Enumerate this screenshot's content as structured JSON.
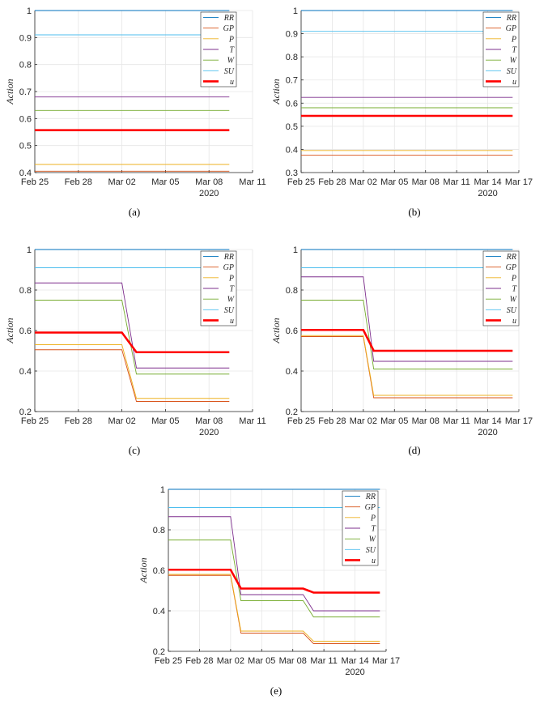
{
  "figure": {
    "legend_entries": [
      "RR",
      "GP",
      "P",
      "T",
      "W",
      "SU",
      "u"
    ],
    "colors": {
      "RR": "#0072BD",
      "GP": "#D95319",
      "P": "#EDB120",
      "T": "#7E2F8E",
      "W": "#77AC30",
      "SU": "#4DBEEE",
      "u": "#FF0000"
    }
  },
  "chart_data": [
    {
      "panel": "(a)",
      "type": "line",
      "xlabel": "",
      "ylabel": "Action",
      "ylim": [
        0.4,
        1
      ],
      "yticks": [
        "0.4",
        "0.5",
        "0.6",
        "0.7",
        "0.8",
        "0.9",
        "1"
      ],
      "xlim_days": [
        0,
        15
      ],
      "xticks": [
        {
          "day": 0,
          "label": "Feb 25"
        },
        {
          "day": 3,
          "label": "Feb 28"
        },
        {
          "day": 6,
          "label": "Mar 02"
        },
        {
          "day": 9,
          "label": "Mar 05"
        },
        {
          "day": 12,
          "label": "Mar 08"
        },
        {
          "day": 15,
          "label": "Mar 11"
        }
      ],
      "year_label": "2020",
      "legend": "top-right",
      "grid": true,
      "series": [
        {
          "name": "RR",
          "points": [
            [
              0,
              1.0
            ],
            [
              13.4,
              1.0
            ]
          ]
        },
        {
          "name": "GP",
          "points": [
            [
              0,
              0.405
            ],
            [
              13.4,
              0.405
            ]
          ]
        },
        {
          "name": "P",
          "points": [
            [
              0,
              0.43
            ],
            [
              13.4,
              0.43
            ]
          ]
        },
        {
          "name": "T",
          "points": [
            [
              0,
              0.68
            ],
            [
              13.4,
              0.68
            ]
          ]
        },
        {
          "name": "W",
          "points": [
            [
              0,
              0.63
            ],
            [
              13.4,
              0.63
            ]
          ]
        },
        {
          "name": "SU",
          "points": [
            [
              0,
              0.91
            ],
            [
              13.4,
              0.91
            ]
          ]
        },
        {
          "name": "u",
          "points": [
            [
              0,
              0.557
            ],
            [
              13.4,
              0.557
            ]
          ]
        }
      ]
    },
    {
      "panel": "(b)",
      "type": "line",
      "xlabel": "",
      "ylabel": "Action",
      "ylim": [
        0.3,
        1
      ],
      "yticks": [
        "0.3",
        "0.4",
        "0.5",
        "0.6",
        "0.7",
        "0.8",
        "0.9",
        "1"
      ],
      "xlim_days": [
        0,
        21
      ],
      "xticks": [
        {
          "day": 0,
          "label": "Feb 25"
        },
        {
          "day": 3,
          "label": "Feb 28"
        },
        {
          "day": 6,
          "label": "Mar 02"
        },
        {
          "day": 9,
          "label": "Mar 05"
        },
        {
          "day": 12,
          "label": "Mar 08"
        },
        {
          "day": 15,
          "label": "Mar 11"
        },
        {
          "day": 18,
          "label": "Mar 14"
        },
        {
          "day": 21,
          "label": "Mar 17"
        }
      ],
      "year_label": "2020",
      "legend": "top-right",
      "grid": true,
      "series": [
        {
          "name": "RR",
          "points": [
            [
              0,
              1.0
            ],
            [
              20.4,
              1.0
            ]
          ]
        },
        {
          "name": "GP",
          "points": [
            [
              0,
              0.375
            ],
            [
              20.4,
              0.375
            ]
          ]
        },
        {
          "name": "P",
          "points": [
            [
              0,
              0.395
            ],
            [
              20.4,
              0.395
            ]
          ]
        },
        {
          "name": "T",
          "points": [
            [
              0,
              0.625
            ],
            [
              20.4,
              0.625
            ]
          ]
        },
        {
          "name": "W",
          "points": [
            [
              0,
              0.58
            ],
            [
              20.4,
              0.58
            ]
          ]
        },
        {
          "name": "SU",
          "points": [
            [
              0,
              0.91
            ],
            [
              20.4,
              0.91
            ]
          ]
        },
        {
          "name": "u",
          "points": [
            [
              0,
              0.545
            ],
            [
              20.4,
              0.545
            ]
          ]
        }
      ]
    },
    {
      "panel": "(c)",
      "type": "line",
      "xlabel": "",
      "ylabel": "Action",
      "ylim": [
        0.2,
        1
      ],
      "yticks": [
        "0.2",
        "0.4",
        "0.6",
        "0.8",
        "1"
      ],
      "xlim_days": [
        0,
        15
      ],
      "xticks": [
        {
          "day": 0,
          "label": "Feb 25"
        },
        {
          "day": 3,
          "label": "Feb 28"
        },
        {
          "day": 6,
          "label": "Mar 02"
        },
        {
          "day": 9,
          "label": "Mar 05"
        },
        {
          "day": 12,
          "label": "Mar 08"
        },
        {
          "day": 15,
          "label": "Mar 11"
        }
      ],
      "year_label": "2020",
      "legend": "top-right",
      "grid": true,
      "series": [
        {
          "name": "RR",
          "points": [
            [
              0,
              1.0
            ],
            [
              13.4,
              1.0
            ]
          ]
        },
        {
          "name": "GP",
          "points": [
            [
              0,
              0.505
            ],
            [
              6,
              0.505
            ],
            [
              7,
              0.25
            ],
            [
              13.4,
              0.25
            ]
          ]
        },
        {
          "name": "P",
          "points": [
            [
              0,
              0.53
            ],
            [
              6,
              0.53
            ],
            [
              7,
              0.265
            ],
            [
              13.4,
              0.265
            ]
          ]
        },
        {
          "name": "T",
          "points": [
            [
              0,
              0.835
            ],
            [
              6,
              0.835
            ],
            [
              7,
              0.415
            ],
            [
              13.4,
              0.415
            ]
          ]
        },
        {
          "name": "W",
          "points": [
            [
              0,
              0.75
            ],
            [
              6,
              0.75
            ],
            [
              7,
              0.385
            ],
            [
              13.4,
              0.385
            ]
          ]
        },
        {
          "name": "SU",
          "points": [
            [
              0,
              0.91
            ],
            [
              13.4,
              0.91
            ]
          ]
        },
        {
          "name": "u",
          "points": [
            [
              0,
              0.59
            ],
            [
              6,
              0.59
            ],
            [
              7,
              0.493
            ],
            [
              13.4,
              0.493
            ]
          ]
        }
      ]
    },
    {
      "panel": "(d)",
      "type": "line",
      "xlabel": "",
      "ylabel": "Action",
      "ylim": [
        0.2,
        1
      ],
      "yticks": [
        "0.2",
        "0.4",
        "0.6",
        "0.8",
        "1"
      ],
      "xlim_days": [
        0,
        21
      ],
      "xticks": [
        {
          "day": 0,
          "label": "Feb 25"
        },
        {
          "day": 3,
          "label": "Feb 28"
        },
        {
          "day": 6,
          "label": "Mar 02"
        },
        {
          "day": 9,
          "label": "Mar 05"
        },
        {
          "day": 12,
          "label": "Mar 08"
        },
        {
          "day": 15,
          "label": "Mar 11"
        },
        {
          "day": 18,
          "label": "Mar 14"
        },
        {
          "day": 21,
          "label": "Mar 17"
        }
      ],
      "year_label": "2020",
      "legend": "top-right",
      "grid": true,
      "series": [
        {
          "name": "RR",
          "points": [
            [
              0,
              1.0
            ],
            [
              20.4,
              1.0
            ]
          ]
        },
        {
          "name": "GP",
          "points": [
            [
              0,
              0.57
            ],
            [
              6,
              0.57
            ],
            [
              7,
              0.268
            ],
            [
              20.4,
              0.268
            ]
          ]
        },
        {
          "name": "P",
          "points": [
            [
              0,
              0.575
            ],
            [
              6,
              0.575
            ],
            [
              7,
              0.28
            ],
            [
              20.4,
              0.28
            ]
          ]
        },
        {
          "name": "T",
          "points": [
            [
              0,
              0.865
            ],
            [
              6,
              0.865
            ],
            [
              7,
              0.448
            ],
            [
              20.4,
              0.448
            ]
          ]
        },
        {
          "name": "W",
          "points": [
            [
              0,
              0.75
            ],
            [
              6,
              0.75
            ],
            [
              7,
              0.41
            ],
            [
              20.4,
              0.41
            ]
          ]
        },
        {
          "name": "SU",
          "points": [
            [
              0,
              0.91
            ],
            [
              20.4,
              0.91
            ]
          ]
        },
        {
          "name": "u",
          "points": [
            [
              0,
              0.603
            ],
            [
              6,
              0.603
            ],
            [
              7,
              0.5
            ],
            [
              20.4,
              0.5
            ]
          ]
        }
      ]
    },
    {
      "panel": "(e)",
      "type": "line",
      "xlabel": "",
      "ylabel": "Action",
      "ylim": [
        0.2,
        1
      ],
      "yticks": [
        "0.2",
        "0.4",
        "0.6",
        "0.8",
        "1"
      ],
      "xlim_days": [
        0,
        21
      ],
      "xticks": [
        {
          "day": 0,
          "label": "Feb 25"
        },
        {
          "day": 3,
          "label": "Feb 28"
        },
        {
          "day": 6,
          "label": "Mar 02"
        },
        {
          "day": 9,
          "label": "Mar 05"
        },
        {
          "day": 12,
          "label": "Mar 08"
        },
        {
          "day": 15,
          "label": "Mar 11"
        },
        {
          "day": 18,
          "label": "Mar 14"
        },
        {
          "day": 21,
          "label": "Mar 17"
        }
      ],
      "year_label": "2020",
      "legend": "top-right",
      "grid": true,
      "series": [
        {
          "name": "RR",
          "points": [
            [
              0,
              1.0
            ],
            [
              20.4,
              1.0
            ]
          ]
        },
        {
          "name": "GP",
          "points": [
            [
              0,
              0.575
            ],
            [
              6,
              0.575
            ],
            [
              7,
              0.29
            ],
            [
              13,
              0.29
            ],
            [
              14,
              0.238
            ],
            [
              20.4,
              0.238
            ]
          ]
        },
        {
          "name": "P",
          "points": [
            [
              0,
              0.58
            ],
            [
              6,
              0.58
            ],
            [
              7,
              0.3
            ],
            [
              13,
              0.3
            ],
            [
              14,
              0.25
            ],
            [
              20.4,
              0.25
            ]
          ]
        },
        {
          "name": "T",
          "points": [
            [
              0,
              0.865
            ],
            [
              6,
              0.865
            ],
            [
              7,
              0.48
            ],
            [
              13,
              0.48
            ],
            [
              14,
              0.4
            ],
            [
              20.4,
              0.4
            ]
          ]
        },
        {
          "name": "W",
          "points": [
            [
              0,
              0.75
            ],
            [
              6,
              0.75
            ],
            [
              7,
              0.45
            ],
            [
              13,
              0.45
            ],
            [
              14,
              0.37
            ],
            [
              20.4,
              0.37
            ]
          ]
        },
        {
          "name": "SU",
          "points": [
            [
              0,
              0.91
            ],
            [
              20.4,
              0.91
            ]
          ]
        },
        {
          "name": "u",
          "points": [
            [
              0,
              0.603
            ],
            [
              6,
              0.603
            ],
            [
              7,
              0.51
            ],
            [
              13,
              0.51
            ],
            [
              14,
              0.49
            ],
            [
              20.4,
              0.49
            ]
          ]
        }
      ]
    }
  ]
}
